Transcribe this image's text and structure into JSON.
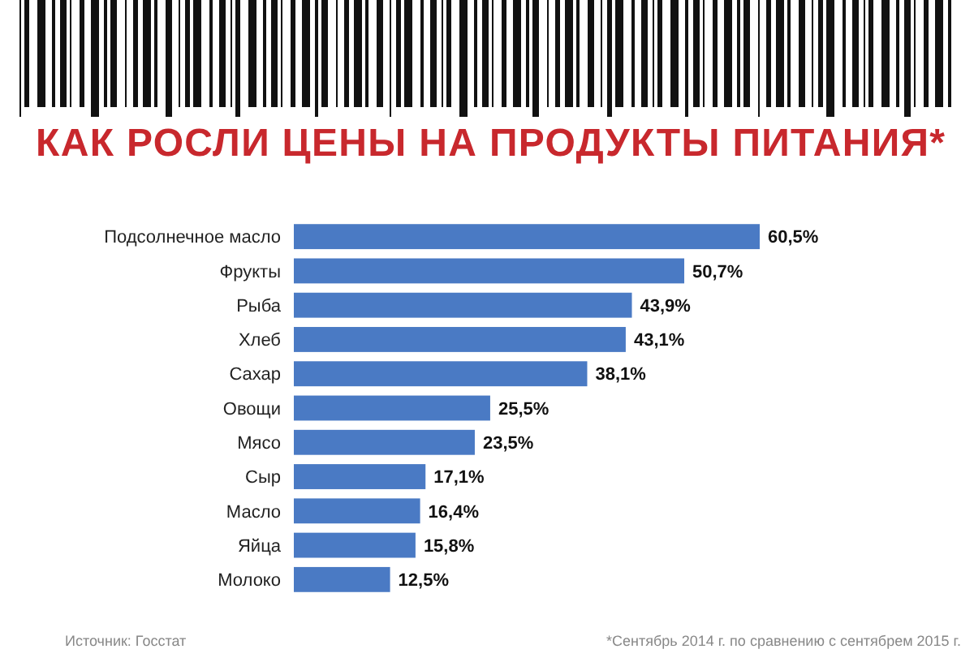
{
  "chart_data": {
    "type": "bar",
    "orientation": "horizontal",
    "title": "КАК РОСЛИ ЦЕНЫ НА ПРОДУКТЫ ПИТАНИЯ*",
    "categories": [
      "Подсолнечное масло",
      "Фрукты",
      "Рыба",
      "Хлеб",
      "Сахар",
      "Овощи",
      "Мясо",
      "Сыр",
      "Масло",
      "Яйца",
      "Молоко"
    ],
    "values": [
      60.5,
      50.7,
      43.9,
      43.1,
      38.1,
      25.5,
      23.5,
      17.1,
      16.4,
      15.8,
      12.5
    ],
    "value_labels": [
      "60,5%",
      "50,7%",
      "43,9%",
      "43,1%",
      "38,1%",
      "25,5%",
      "23,5%",
      "17,1%",
      "16,4%",
      "15,8%",
      "12,5%"
    ],
    "color": "#4a7ac4",
    "annotations": [
      "Источник: Госстат",
      "*Сентябрь 2014 г. по сравнению с сентябрем 2015 г."
    ]
  }
}
